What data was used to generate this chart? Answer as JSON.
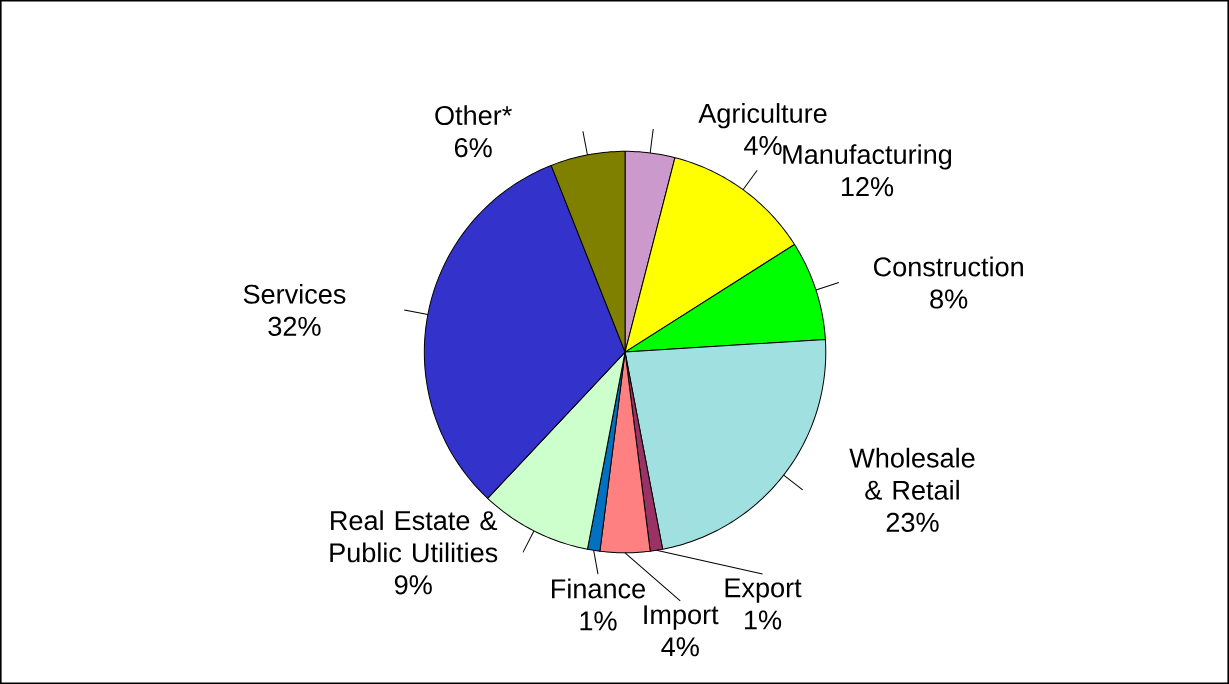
{
  "chart_data": {
    "type": "pie",
    "categories": [
      "Agriculture",
      "Manufacturing",
      "Construction",
      "Wholesale & Retail",
      "Export",
      "Import",
      "Finance",
      "Real Estate & Public Utilities",
      "Services",
      "Other*"
    ],
    "values": [
      4,
      12,
      8,
      23,
      1,
      4,
      1,
      9,
      32,
      6
    ],
    "value_labels": [
      "4%",
      "12%",
      "8%",
      "23%",
      "1%",
      "4%",
      "1%",
      "9%",
      "32%",
      "6%"
    ],
    "colors": [
      "#cc99cc",
      "#ffff00",
      "#00ff00",
      "#a0e0e0",
      "#993366",
      "#ff8080",
      "#0070c0",
      "#ccffcc",
      "#3333cc",
      "#808000"
    ]
  }
}
